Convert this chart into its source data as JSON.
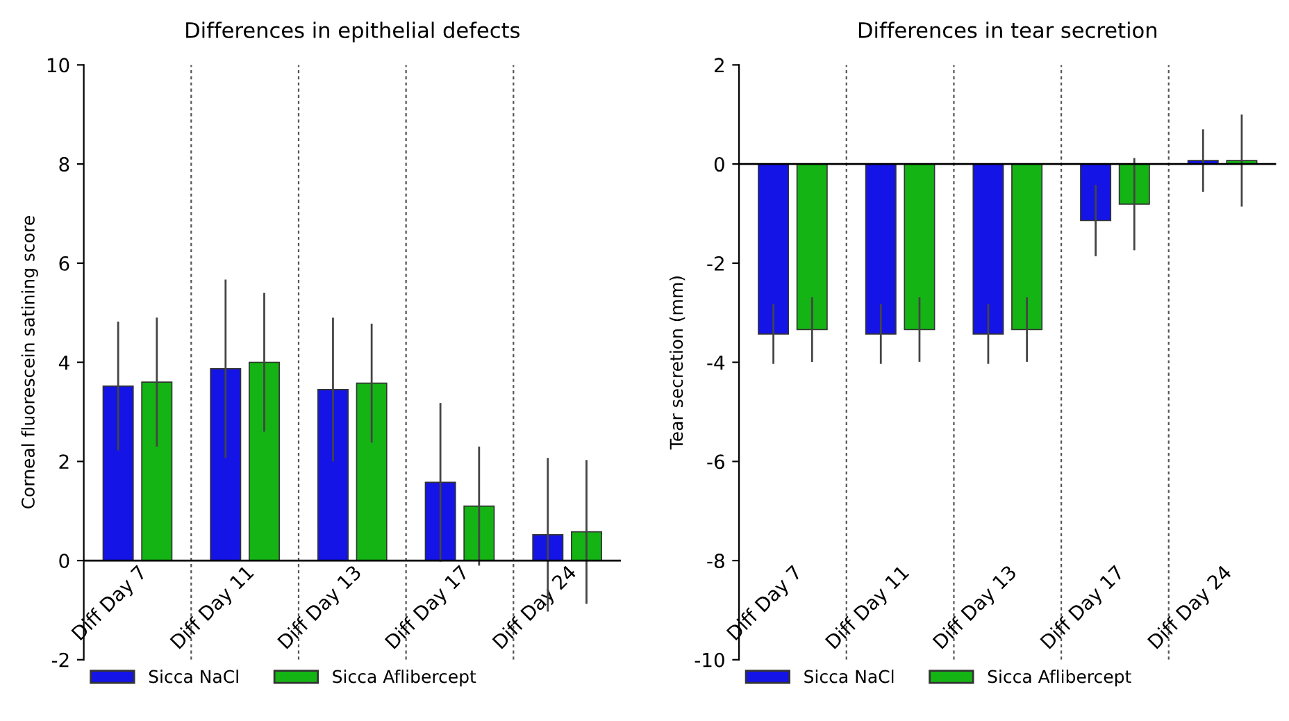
{
  "chart_data": [
    {
      "type": "bar",
      "title": "Differences in epithelial defects",
      "ylabel": "Corneal fluorescein satining score",
      "categories": [
        "Diff Day 7",
        "Diff Day 11",
        "Diff Day 13",
        "Diff Day 17",
        "Diff Day 24"
      ],
      "series": [
        {
          "name": "Sicca NaCl",
          "color": "#1414e6",
          "values": [
            3.52,
            3.87,
            3.45,
            1.58,
            0.52
          ],
          "errors": [
            1.3,
            1.8,
            1.45,
            1.6,
            1.55
          ]
        },
        {
          "name": "Sicca Aflibercept",
          "color": "#14b414",
          "values": [
            3.6,
            4.0,
            3.58,
            1.1,
            0.58
          ],
          "errors": [
            1.3,
            1.4,
            1.2,
            1.2,
            1.45
          ]
        }
      ],
      "ylim": [
        -2,
        10
      ],
      "yticks": [
        -2,
        0,
        2,
        4,
        6,
        8,
        10
      ],
      "grid": false,
      "legend": "bottom left"
    },
    {
      "type": "bar",
      "title": "Differences in tear secretion",
      "ylabel": "Tear secretion (mm)",
      "categories": [
        "Diff Day 7",
        "Diff Day 11",
        "Diff Day 13",
        "Diff Day 17",
        "Diff Day 24"
      ],
      "series": [
        {
          "name": "Sicca NaCl",
          "color": "#1414e6",
          "values": [
            -3.43,
            -3.43,
            -3.43,
            -1.14,
            0.07
          ],
          "errors": [
            0.6,
            0.6,
            0.6,
            0.72,
            0.63
          ]
        },
        {
          "name": "Sicca Aflibercept",
          "color": "#14b414",
          "values": [
            -3.34,
            -3.34,
            -3.34,
            -0.81,
            0.07
          ],
          "errors": [
            0.65,
            0.65,
            0.65,
            0.93,
            0.93
          ]
        }
      ],
      "ylim": [
        -10,
        2
      ],
      "yticks": [
        -10,
        -8,
        -6,
        -4,
        -2,
        0,
        2
      ],
      "grid": false,
      "legend": "bottom left"
    }
  ]
}
